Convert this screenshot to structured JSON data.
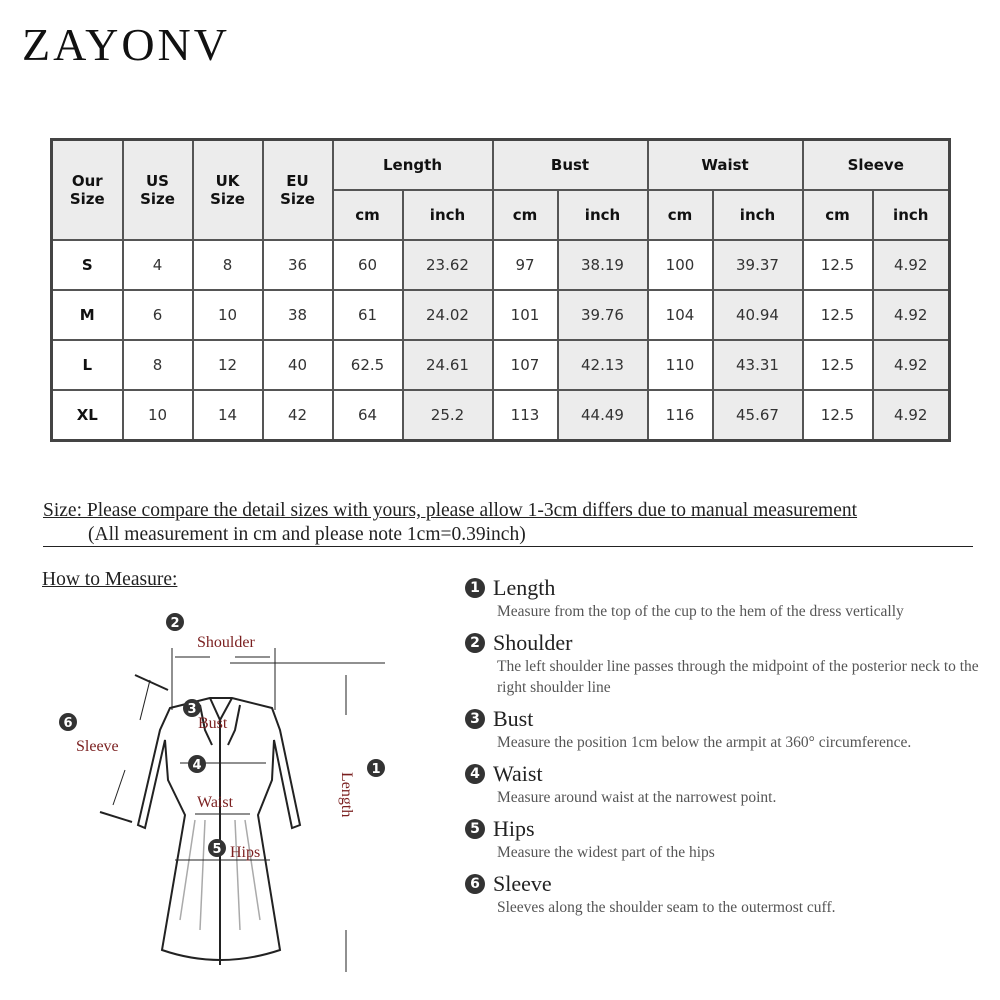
{
  "brand": "ZAYONV",
  "table": {
    "headers": {
      "our": "Our Size",
      "us": "US Size",
      "uk": "UK Size",
      "eu": "EU Size",
      "length": "Length",
      "bust": "Bust",
      "waist": "Waist",
      "sleeve": "Sleeve",
      "cm": "cm",
      "inch": "inch"
    },
    "rows": [
      [
        "S",
        "4",
        "8",
        "36",
        "60",
        "23.62",
        "97",
        "38.19",
        "100",
        "39.37",
        "12.5",
        "4.92"
      ],
      [
        "M",
        "6",
        "10",
        "38",
        "61",
        "24.02",
        "101",
        "39.76",
        "104",
        "40.94",
        "12.5",
        "4.92"
      ],
      [
        "L",
        "8",
        "12",
        "40",
        "62.5",
        "24.61",
        "107",
        "42.13",
        "110",
        "43.31",
        "12.5",
        "4.92"
      ],
      [
        "XL",
        "10",
        "14",
        "42",
        "64",
        "25.2",
        "113",
        "44.49",
        "116",
        "45.67",
        "12.5",
        "4.92"
      ]
    ]
  },
  "note": {
    "line1": "Size: Please compare the detail sizes with yours, please allow 1-3cm differs due to manual measurement",
    "line2": "(All measurement in cm and please note 1cm=0.39inch)"
  },
  "how_to_measure": "How to Measure:",
  "diagram": {
    "shoulder": "Shoulder",
    "bust": "Bust",
    "waist": "Waist",
    "hips": "Hips",
    "sleeve": "Sleeve",
    "length": "Length",
    "n1": "1",
    "n2": "2",
    "n3": "3",
    "n4": "4",
    "n5": "5",
    "n6": "6"
  },
  "steps": [
    {
      "num": "1",
      "title": "Length",
      "desc": "Measure from the top of the cup to the hem of the dress vertically"
    },
    {
      "num": "2",
      "title": "Shoulder",
      "desc": "The left shoulder line passes through the midpoint of the posterior neck to the right shoulder line"
    },
    {
      "num": "3",
      "title": "Bust",
      "desc": "Measure the position 1cm below the armpit at 360° circumference."
    },
    {
      "num": "4",
      "title": "Waist",
      "desc": "Measure around waist at the narrowest point."
    },
    {
      "num": "5",
      "title": "Hips",
      "desc": "Measure the widest part of the hips"
    },
    {
      "num": "6",
      "title": "Sleeve",
      "desc": "Sleeves along the shoulder seam to the outermost cuff."
    }
  ]
}
